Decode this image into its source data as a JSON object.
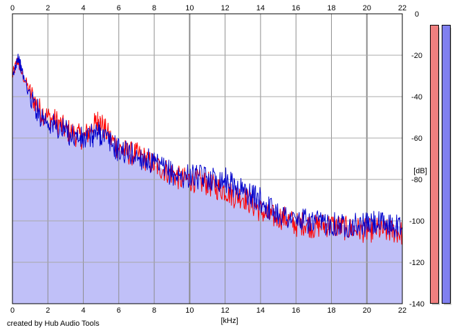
{
  "chart_data": {
    "type": "area",
    "xlim": [
      0,
      22
    ],
    "ylim": [
      -140,
      0
    ],
    "x_ticks": [
      0,
      2,
      4,
      6,
      8,
      10,
      12,
      14,
      16,
      18,
      20,
      22
    ],
    "y_ticks": [
      0,
      -20,
      -40,
      -60,
      -80,
      -100,
      -120,
      -140
    ],
    "y_tick_labels": [
      "0",
      "-20",
      "-40",
      "-60",
      "-80",
      "-100",
      "-120",
      "-140"
    ],
    "xlabel": "[kHz]",
    "ylabel": "[dB]",
    "grid": true,
    "series": [
      {
        "color": "#ff0000",
        "x": [
          0.0,
          0.3,
          0.5,
          1.0,
          1.5,
          2.0,
          2.5,
          3.0,
          3.5,
          4.0,
          4.5,
          4.8,
          5.0,
          5.5,
          6.0,
          6.5,
          7.0,
          7.5,
          8.0,
          8.5,
          9.0,
          9.5,
          10.0,
          10.5,
          11.0,
          11.5,
          12.0,
          12.5,
          13.0,
          13.5,
          14.0,
          14.5,
          15.0,
          15.5,
          16.0,
          16.5,
          17.0,
          17.5,
          18.0,
          18.5,
          19.0,
          19.5,
          20.0,
          20.5,
          21.0,
          21.5,
          22.0
        ],
        "y": [
          -30,
          -22,
          -28,
          -38,
          -46,
          -50,
          -52,
          -56,
          -58,
          -60,
          -55,
          -52,
          -53,
          -60,
          -65,
          -67,
          -68,
          -70,
          -73,
          -75,
          -77,
          -80,
          -80,
          -81,
          -82,
          -84,
          -85,
          -88,
          -88,
          -92,
          -95,
          -98,
          -98,
          -99,
          -102,
          -101,
          -103,
          -102,
          -102,
          -103,
          -104,
          -104,
          -105,
          -104,
          -105,
          -105,
          -106
        ]
      },
      {
        "color": "#0000cc",
        "x": [
          0.0,
          0.3,
          0.5,
          1.0,
          1.5,
          2.0,
          2.5,
          3.0,
          3.5,
          4.0,
          4.5,
          4.8,
          5.0,
          5.5,
          6.0,
          6.5,
          7.0,
          7.5,
          8.0,
          8.5,
          9.0,
          9.5,
          10.0,
          10.5,
          11.0,
          11.5,
          12.0,
          12.5,
          13.0,
          13.5,
          14.0,
          14.5,
          15.0,
          15.5,
          16.0,
          16.5,
          17.0,
          17.5,
          18.0,
          18.5,
          19.0,
          19.5,
          20.0,
          20.5,
          21.0,
          21.5,
          22.0
        ],
        "y": [
          -32,
          -20,
          -27,
          -40,
          -48,
          -52,
          -55,
          -57,
          -59,
          -61,
          -59,
          -57,
          -58,
          -62,
          -66,
          -67,
          -69,
          -70,
          -73,
          -75,
          -77,
          -79,
          -78,
          -79,
          -79,
          -80,
          -80,
          -83,
          -85,
          -88,
          -90,
          -94,
          -96,
          -98,
          -100,
          -100,
          -101,
          -101,
          -101,
          -102,
          -102,
          -102,
          -102,
          -101,
          -102,
          -102,
          -103
        ]
      }
    ],
    "meters": {
      "left_color": "#f07f7f",
      "right_color": "#8080f0"
    }
  },
  "credit": "created by Hub Audio Tools"
}
